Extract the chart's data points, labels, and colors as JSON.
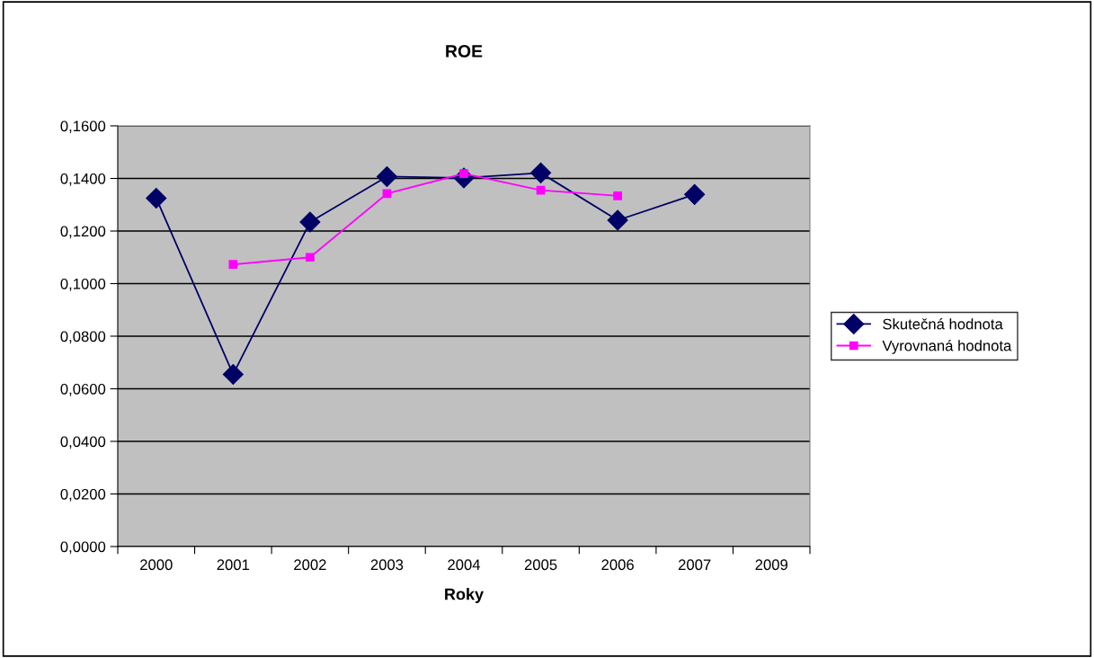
{
  "chart_data": {
    "type": "line",
    "title": "ROE",
    "xlabel": "Roky",
    "categories": [
      "2000",
      "2001",
      "2002",
      "2003",
      "2004",
      "2005",
      "2006",
      "2007",
      "2009"
    ],
    "series": [
      {
        "name": "Skutečná hodnota",
        "color": "#000066",
        "marker": "diamond",
        "values": [
          0.1325,
          0.0655,
          0.1234,
          0.1407,
          0.1402,
          0.1421,
          0.1241,
          0.1339,
          null
        ]
      },
      {
        "name": "Vyrovnaná hodnota",
        "color": "#ff00ff",
        "marker": "square",
        "values": [
          null,
          0.1073,
          0.11,
          0.1342,
          0.1418,
          0.1355,
          0.1334,
          null,
          null
        ]
      }
    ],
    "ylim": [
      0,
      0.16
    ],
    "yticks": [
      {
        "value": 0,
        "label": "0,0000"
      },
      {
        "value": 0.02,
        "label": "0,0200"
      },
      {
        "value": 0.04,
        "label": "0,0400"
      },
      {
        "value": 0.06,
        "label": "0,0600"
      },
      {
        "value": 0.08,
        "label": "0,0800"
      },
      {
        "value": 0.1,
        "label": "0,1000"
      },
      {
        "value": 0.12,
        "label": "0,1200"
      },
      {
        "value": 0.14,
        "label": "0,1400"
      },
      {
        "value": 0.16,
        "label": "0,1600"
      }
    ],
    "grid": "y",
    "legend": "right"
  }
}
